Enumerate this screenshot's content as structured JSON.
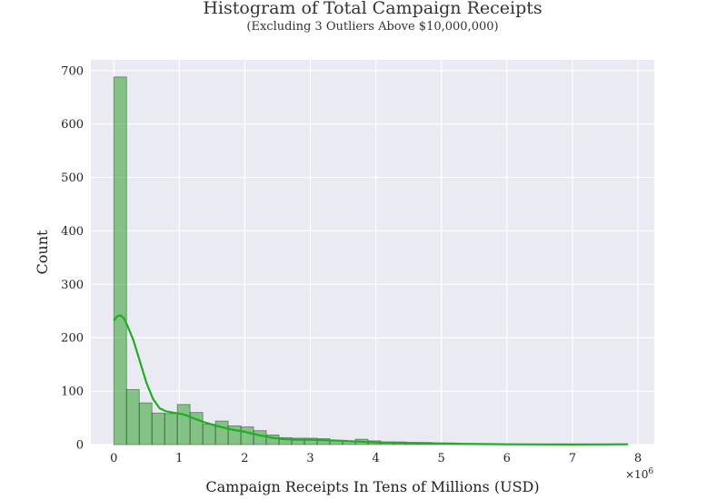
{
  "chart_data": {
    "type": "bar",
    "title": "Histogram of Total Campaign Receipts",
    "subtitle": "(Excluding 3 Outliers Above $10,000,000)",
    "xlabel": "Campaign Receipts In Tens of Millions (USD)",
    "ylabel": "Count",
    "x_scale_note": "×10^6",
    "xlim": [
      -0.35,
      8.25
    ],
    "ylim": [
      0,
      720
    ],
    "xticks": [
      0,
      1,
      2,
      3,
      4,
      5,
      6,
      7,
      8
    ],
    "yticks": [
      0,
      100,
      200,
      300,
      400,
      500,
      600,
      700
    ],
    "grid": true,
    "bin_width": 0.194,
    "bin_start": 0,
    "series": [
      {
        "kind": "histogram",
        "color": "#2ca02c",
        "counts": [
          688,
          103,
          78,
          59,
          58,
          75,
          60,
          38,
          44,
          35,
          33,
          26,
          18,
          13,
          12,
          12,
          11,
          7,
          6,
          10,
          7,
          5,
          5,
          4,
          4,
          3,
          3,
          2,
          2,
          2,
          1,
          1,
          1,
          1,
          1,
          1,
          1,
          1,
          0,
          0,
          0,
          0,
          0,
          0,
          0,
          0,
          0,
          0,
          0,
          0,
          0,
          0,
          0,
          0,
          0,
          0,
          0,
          0,
          0,
          0,
          0,
          0,
          0,
          0,
          0,
          0,
          0,
          0,
          0,
          0,
          0,
          0,
          0,
          0,
          0,
          0,
          0,
          0,
          0,
          2
        ]
      },
      {
        "kind": "kde",
        "color": "#1fae1f",
        "x": [
          0,
          0.05,
          0.1,
          0.15,
          0.2,
          0.3,
          0.4,
          0.5,
          0.6,
          0.7,
          0.8,
          0.9,
          1.0,
          1.1,
          1.2,
          1.4,
          1.6,
          1.8,
          2.0,
          2.2,
          2.4,
          2.6,
          2.8,
          3.0,
          3.5,
          4.0,
          4.5,
          5.0,
          5.5,
          6.0,
          6.5,
          7.0,
          7.5,
          7.85
        ],
        "y": [
          232,
          240,
          242,
          237,
          225,
          195,
          155,
          115,
          85,
          68,
          62,
          60,
          58,
          55,
          50,
          41,
          34,
          28,
          24,
          18,
          13,
          10,
          9,
          9,
          7,
          4,
          3,
          2,
          1,
          0.5,
          0.3,
          0.2,
          0.3,
          0.5
        ]
      }
    ]
  }
}
